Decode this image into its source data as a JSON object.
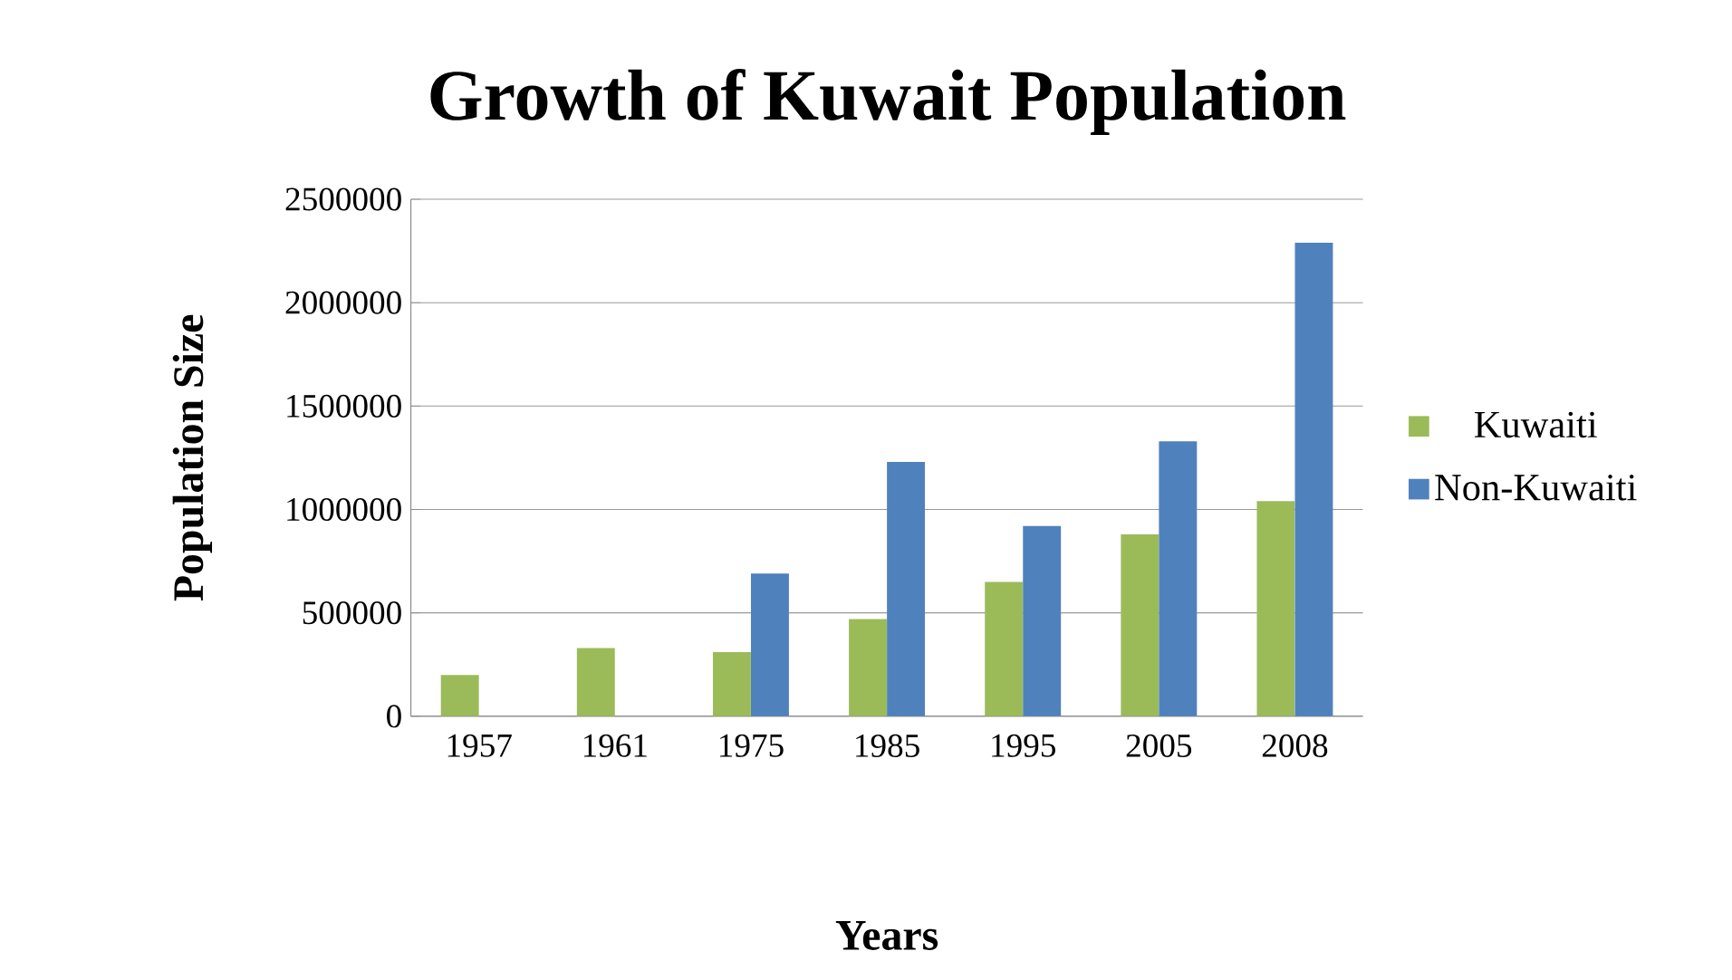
{
  "chart_data": {
    "type": "bar",
    "title": "Growth of Kuwait Population",
    "xlabel": "Years",
    "ylabel": "Population Size",
    "categories": [
      "1957",
      "1961",
      "1975",
      "1985",
      "1995",
      "2005",
      "2008"
    ],
    "series": [
      {
        "name": "Kuwaiti",
        "color": "#9bbb59",
        "values": [
          200000,
          330000,
          310000,
          470000,
          650000,
          880000,
          1040000
        ]
      },
      {
        "name": "Non-Kuwaiti",
        "color": "#4f81bd",
        "values": [
          null,
          null,
          690000,
          1230000,
          920000,
          1330000,
          2290000
        ]
      }
    ],
    "ylim": [
      0,
      2500000
    ],
    "yticks": [
      0,
      500000,
      1000000,
      1500000,
      2000000,
      2500000
    ],
    "grid": "y",
    "legend": "right"
  }
}
